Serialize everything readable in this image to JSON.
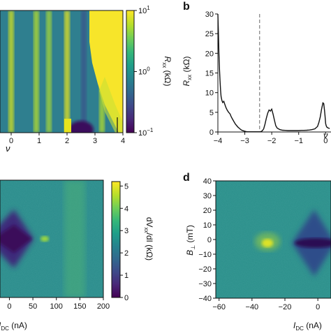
{
  "panels": {
    "a": {
      "type": "heatmap",
      "xlabel": "ν",
      "x_ticks": [
        "0",
        "1",
        "2",
        "3",
        "4"
      ],
      "xlim": [
        -0.4,
        4
      ],
      "colorbar": {
        "label_main": "R",
        "label_sub": "xx",
        "label_unit": " (kΩ)",
        "scale": "log",
        "ticks": [
          {
            "base": "10",
            "exp": "1",
            "value": 10
          },
          {
            "base": "10",
            "exp": "0",
            "value": 1
          },
          {
            "base": "10",
            "exp": "−1",
            "value": 0.1
          }
        ],
        "range": [
          0.1,
          10
        ]
      },
      "stripes_nu": [
        0,
        0.9,
        1.35,
        2,
        2.6,
        3.25
      ]
    },
    "b": {
      "label": "b",
      "type": "line",
      "xlabel": "ν",
      "ylabel_main": "R",
      "ylabel_sub": "xx",
      "ylabel_unit": " (kΩ)",
      "x_ticks": [
        "−4",
        "−3",
        "−2",
        "−1",
        "0"
      ],
      "y_ticks": [
        "0",
        "5",
        "10",
        "15",
        "20",
        "25",
        "30"
      ],
      "xlim": [
        -4,
        0.2
      ],
      "ylim": [
        0,
        30
      ],
      "dashed_line_x": -2.45,
      "series": [
        {
          "x": [
            -4.0,
            -3.98,
            -3.96,
            -3.94,
            -3.92,
            -3.9,
            -3.88,
            -3.85,
            -3.82,
            -3.78,
            -3.74,
            -3.7,
            -3.65,
            -3.6,
            -3.55,
            -3.5,
            -3.45,
            -3.4,
            -3.35,
            -3.3,
            -3.25,
            -3.2,
            -3.15,
            -3.1,
            -3.05,
            -3.0,
            -2.95,
            -2.9,
            -2.85,
            -2.8,
            -2.75,
            -2.7,
            -2.65,
            -2.6,
            -2.55,
            -2.5,
            -2.45,
            -2.4,
            -2.35,
            -2.3,
            -2.25,
            -2.2,
            -2.15,
            -2.1,
            -2.05,
            -2.0,
            -1.95,
            -1.9,
            -1.85,
            -1.8,
            -1.7,
            -1.6,
            -1.5,
            -1.4,
            -1.3,
            -1.2,
            -1.1,
            -1.0,
            -0.9,
            -0.8,
            -0.7,
            -0.6,
            -0.5,
            -0.4,
            -0.3,
            -0.25,
            -0.2,
            -0.15,
            -0.1,
            -0.07,
            -0.04,
            -0.02,
            0.0,
            0.02,
            0.05,
            0.1,
            0.15
          ],
          "y": [
            30,
            25,
            20,
            16,
            13,
            10.5,
            9,
            8,
            7.5,
            7.8,
            7.0,
            6.2,
            5.5,
            5.0,
            4.6,
            3.8,
            3.2,
            2.6,
            2.0,
            1.6,
            1.2,
            0.9,
            0.6,
            0.4,
            0.3,
            0.2,
            0.1,
            0.05,
            0.05,
            0.05,
            0.05,
            0.05,
            0.05,
            0.05,
            0.05,
            0.05,
            0.05,
            0.1,
            0.3,
            0.8,
            2.0,
            3.5,
            4.8,
            5.6,
            5.3,
            5.8,
            4.5,
            3.0,
            1.6,
            1.0,
            0.6,
            0.45,
            0.4,
            0.35,
            0.35,
            0.35,
            0.35,
            0.35,
            0.4,
            0.4,
            0.45,
            0.5,
            0.6,
            0.8,
            1.4,
            2.4,
            3.8,
            5.8,
            7.4,
            7.2,
            5.5,
            4.0,
            2.2,
            1.6,
            1.2,
            1.0,
            0.9
          ]
        }
      ]
    },
    "c": {
      "type": "heatmap",
      "xlabel_main": "I",
      "xlabel_sub": "DC",
      "xlabel_unit": " (nA)",
      "x_ticks": [
        "0",
        "50",
        "100",
        "150",
        "200"
      ],
      "xlim": [
        -20,
        200
      ],
      "colorbar": {
        "label": "dV",
        "label_sub1": "xx",
        "label_mid": "/dI (kΩ)",
        "ticks": [
          "0",
          "1",
          "2",
          "3",
          "4",
          "5"
        ],
        "range": [
          0,
          5.2
        ]
      }
    },
    "d": {
      "label": "d",
      "type": "heatmap",
      "xlabel_main": "I",
      "xlabel_sub": "DC",
      "xlabel_unit": " (nA)",
      "ylabel_main": "B",
      "ylabel_sub": "⊥",
      "ylabel_unit": " (mT)",
      "x_ticks": [
        "−60",
        "−40",
        "−20",
        "0"
      ],
      "y_ticks": [
        "40",
        "30",
        "20",
        "10",
        "0",
        "−10",
        "−20",
        "−30",
        "−40"
      ],
      "xlim": [
        -62,
        8
      ],
      "ylim": [
        -40,
        40
      ]
    }
  },
  "colors": {
    "cmap": [
      "#440154",
      "#482878",
      "#3e4989",
      "#31688e",
      "#26828e",
      "#1f9e89",
      "#35b779",
      "#6ece58",
      "#b5de2b",
      "#fde725"
    ],
    "line": "#111111",
    "dashed": "#666666"
  }
}
